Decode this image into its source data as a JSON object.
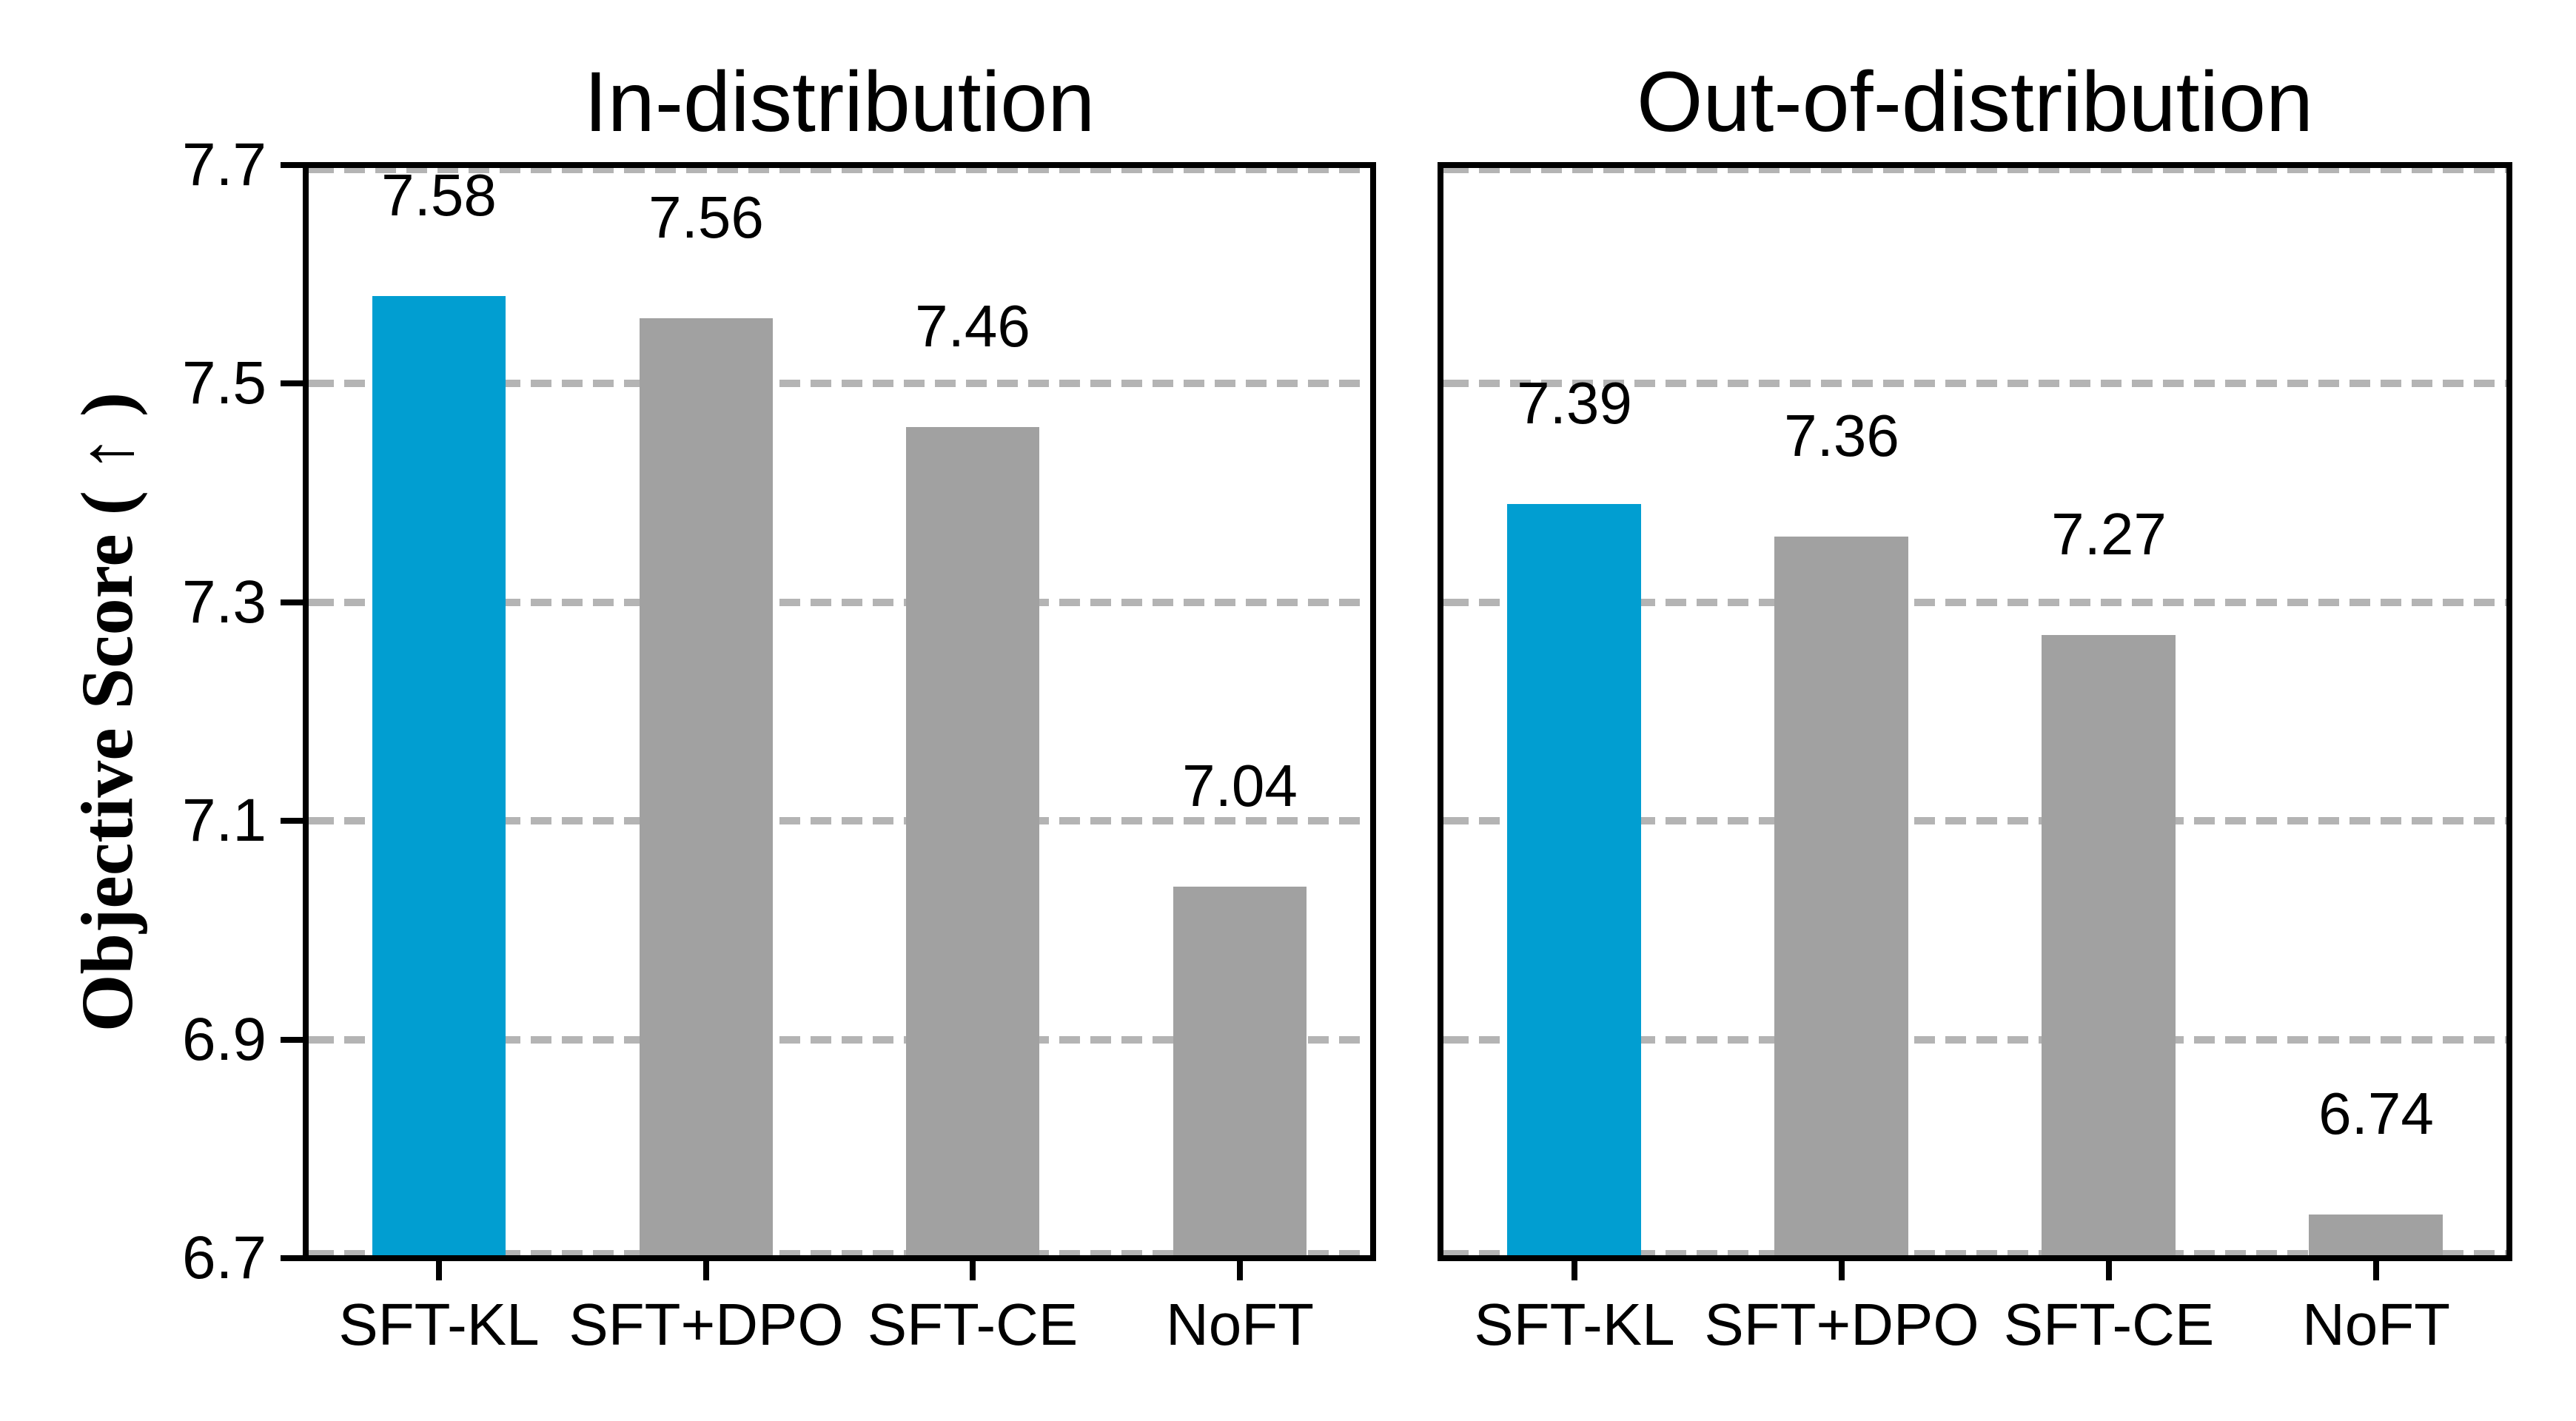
{
  "y_axis": {
    "label": "Objective Score ( ↑ )",
    "tick_labels": [
      "7.7",
      "7.5",
      "7.3",
      "7.1",
      "6.9",
      "6.7"
    ]
  },
  "chart_data": {
    "type": "bar",
    "categories": [
      "SFT-KL",
      "SFT+DPO",
      "SFT-CE",
      "NoFT"
    ],
    "ylabel": "Objective Score ( ↑ )",
    "ylim": [
      6.7,
      7.7
    ],
    "yticks": [
      6.7,
      6.9,
      7.1,
      7.3,
      7.5,
      7.7
    ],
    "grid": {
      "style": "dashed",
      "orientation": "horizontal",
      "on": true
    },
    "legend_position": "none",
    "panels": [
      {
        "title": "In-distribution",
        "values": [
          7.58,
          7.56,
          7.46,
          7.04
        ],
        "value_labels": [
          "7.58",
          "7.56",
          "7.46",
          "7.04"
        ]
      },
      {
        "title": "Out-of-distribution",
        "values": [
          7.39,
          7.36,
          7.27,
          6.74
        ],
        "value_labels": [
          "7.39",
          "7.36",
          "7.27",
          "6.74"
        ]
      }
    ],
    "highlight_category": "SFT-KL",
    "colors": {
      "highlight_bar": "#019ed1",
      "default_bar": "#a1a1a1",
      "gridline": "#b4b4b4",
      "axis": "#000000",
      "text": "#000000",
      "background": "#ffffff"
    }
  }
}
